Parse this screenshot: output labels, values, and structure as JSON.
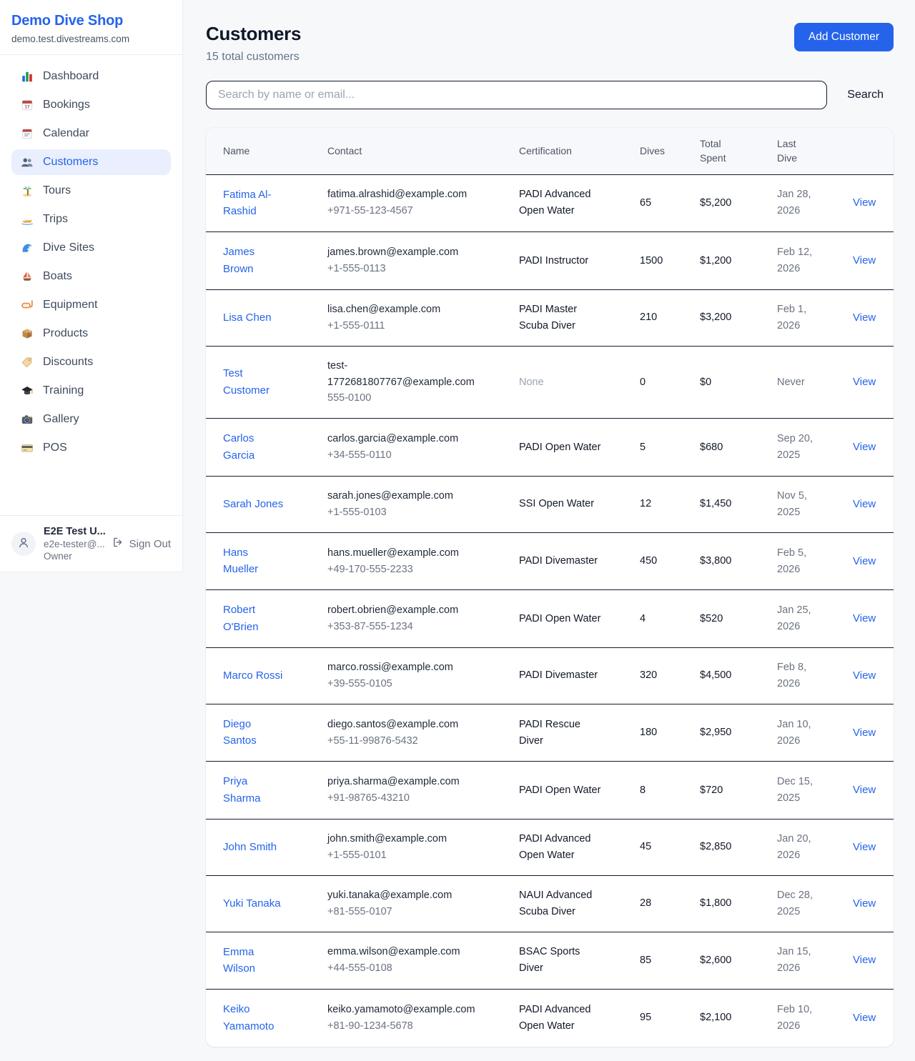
{
  "colors": {
    "accent": "#2563eb",
    "accent_light_bg": "#e9effd",
    "page_bg": "#f7f8fa",
    "card_bg": "#ffffff",
    "row_divider": "#131c2e",
    "muted_text": "#6b7280",
    "faint_text": "#9ca3af"
  },
  "sidebar": {
    "shop_name": "Demo Dive Shop",
    "shop_domain": "demo.test.divestreams.com",
    "items": [
      {
        "label": "Dashboard",
        "icon": "bar-chart-icon",
        "active": false
      },
      {
        "label": "Bookings",
        "icon": "calendar-date-icon",
        "active": false
      },
      {
        "label": "Calendar",
        "icon": "calendar-icon",
        "active": false
      },
      {
        "label": "Customers",
        "icon": "people-icon",
        "active": true
      },
      {
        "label": "Tours",
        "icon": "palm-tree-icon",
        "active": false
      },
      {
        "label": "Trips",
        "icon": "speedboat-icon",
        "active": false
      },
      {
        "label": "Dive Sites",
        "icon": "wave-icon",
        "active": false
      },
      {
        "label": "Boats",
        "icon": "sailboat-icon",
        "active": false
      },
      {
        "label": "Equipment",
        "icon": "diving-mask-icon",
        "active": false
      },
      {
        "label": "Products",
        "icon": "package-icon",
        "active": false
      },
      {
        "label": "Discounts",
        "icon": "tag-icon",
        "active": false
      },
      {
        "label": "Training",
        "icon": "graduation-cap-icon",
        "active": false
      },
      {
        "label": "Gallery",
        "icon": "camera-icon",
        "active": false
      },
      {
        "label": "POS",
        "icon": "credit-card-icon",
        "active": false
      }
    ],
    "user": {
      "name": "E2E Test U...",
      "email": "e2e-tester@...",
      "role": "Owner",
      "sign_out_label": "Sign Out"
    }
  },
  "header": {
    "title": "Customers",
    "subtitle": "15 total customers",
    "add_button": "Add Customer"
  },
  "search": {
    "placeholder": "Search by name or email...",
    "button": "Search"
  },
  "table": {
    "columns": [
      "Name",
      "Contact",
      "Certification",
      "Dives",
      "Total Spent",
      "Last Dive",
      ""
    ],
    "view_label": "View",
    "rows": [
      {
        "name": "Fatima Al-Rashid",
        "email": "fatima.alrashid@example.com",
        "phone": "+971-55-123-4567",
        "certification": "PADI Advanced Open Water",
        "dives": "65",
        "total_spent": "$5,200",
        "last_dive": "Jan 28, 2026"
      },
      {
        "name": "James Brown",
        "email": "james.brown@example.com",
        "phone": "+1-555-0113",
        "certification": "PADI Instructor",
        "dives": "1500",
        "total_spent": "$1,200",
        "last_dive": "Feb 12, 2026"
      },
      {
        "name": "Lisa Chen",
        "email": "lisa.chen@example.com",
        "phone": "+1-555-0111",
        "certification": "PADI Master Scuba Diver",
        "dives": "210",
        "total_spent": "$3,200",
        "last_dive": "Feb 1, 2026"
      },
      {
        "name": "Test Customer",
        "email": "test-1772681807767@example.com",
        "phone": "555-0100",
        "certification": "None",
        "dives": "0",
        "total_spent": "$0",
        "last_dive": "Never"
      },
      {
        "name": "Carlos Garcia",
        "email": "carlos.garcia@example.com",
        "phone": "+34-555-0110",
        "certification": "PADI Open Water",
        "dives": "5",
        "total_spent": "$680",
        "last_dive": "Sep 20, 2025"
      },
      {
        "name": "Sarah Jones",
        "email": "sarah.jones@example.com",
        "phone": "+1-555-0103",
        "certification": "SSI Open Water",
        "dives": "12",
        "total_spent": "$1,450",
        "last_dive": "Nov 5, 2025"
      },
      {
        "name": "Hans Mueller",
        "email": "hans.mueller@example.com",
        "phone": "+49-170-555-2233",
        "certification": "PADI Divemaster",
        "dives": "450",
        "total_spent": "$3,800",
        "last_dive": "Feb 5, 2026"
      },
      {
        "name": "Robert O'Brien",
        "email": "robert.obrien@example.com",
        "phone": "+353-87-555-1234",
        "certification": "PADI Open Water",
        "dives": "4",
        "total_spent": "$520",
        "last_dive": "Jan 25, 2026"
      },
      {
        "name": "Marco Rossi",
        "email": "marco.rossi@example.com",
        "phone": "+39-555-0105",
        "certification": "PADI Divemaster",
        "dives": "320",
        "total_spent": "$4,500",
        "last_dive": "Feb 8, 2026"
      },
      {
        "name": "Diego Santos",
        "email": "diego.santos@example.com",
        "phone": "+55-11-99876-5432",
        "certification": "PADI Rescue Diver",
        "dives": "180",
        "total_spent": "$2,950",
        "last_dive": "Jan 10, 2026"
      },
      {
        "name": "Priya Sharma",
        "email": "priya.sharma@example.com",
        "phone": "+91-98765-43210",
        "certification": "PADI Open Water",
        "dives": "8",
        "total_spent": "$720",
        "last_dive": "Dec 15, 2025"
      },
      {
        "name": "John Smith",
        "email": "john.smith@example.com",
        "phone": "+1-555-0101",
        "certification": "PADI Advanced Open Water",
        "dives": "45",
        "total_spent": "$2,850",
        "last_dive": "Jan 20, 2026"
      },
      {
        "name": "Yuki Tanaka",
        "email": "yuki.tanaka@example.com",
        "phone": "+81-555-0107",
        "certification": "NAUI Advanced Scuba Diver",
        "dives": "28",
        "total_spent": "$1,800",
        "last_dive": "Dec 28, 2025"
      },
      {
        "name": "Emma Wilson",
        "email": "emma.wilson@example.com",
        "phone": "+44-555-0108",
        "certification": "BSAC Sports Diver",
        "dives": "85",
        "total_spent": "$2,600",
        "last_dive": "Jan 15, 2026"
      },
      {
        "name": "Keiko Yamamoto",
        "email": "keiko.yamamoto@example.com",
        "phone": "+81-90-1234-5678",
        "certification": "PADI Advanced Open Water",
        "dives": "95",
        "total_spent": "$2,100",
        "last_dive": "Feb 10, 2026"
      }
    ]
  }
}
